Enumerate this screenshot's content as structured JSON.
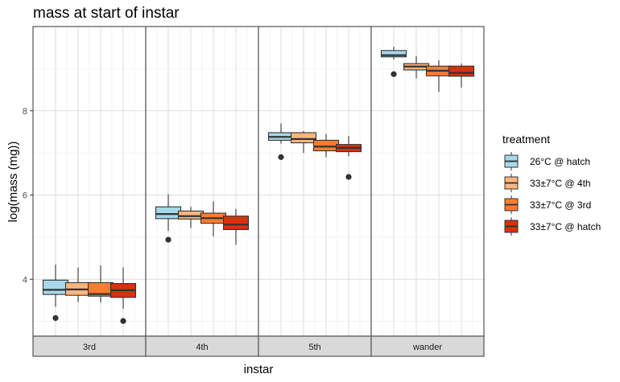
{
  "chart_data": {
    "type": "boxplot",
    "title": "mass at start of instar",
    "xlabel": "instar",
    "ylabel": "log(mass (mg))",
    "ylim": [
      2.65,
      10.0
    ],
    "y_ticks": [
      4,
      6,
      8
    ],
    "grid": true,
    "facets": [
      "3rd",
      "4th",
      "5th",
      "wander"
    ],
    "legend": {
      "title": "treatment",
      "position": "right",
      "entries": [
        {
          "label": "26°C @ hatch",
          "color": "#a6d8ea"
        },
        {
          "label": "33±7°C @ 4th",
          "color": "#fdb57e"
        },
        {
          "label": "33±7°C @ 3rd",
          "color": "#fb7c33"
        },
        {
          "label": "33±7°C @ hatch",
          "color": "#d6320d"
        }
      ]
    },
    "panels": [
      {
        "facet": "3rd",
        "boxes": [
          {
            "treatment": "26°C @ hatch",
            "min": 3.35,
            "q1": 3.64,
            "median": 3.75,
            "q3": 3.98,
            "max": 4.35,
            "outliers": [
              3.08
            ]
          },
          {
            "treatment": "33±7°C @ 4th",
            "min": 3.46,
            "q1": 3.62,
            "median": 3.76,
            "q3": 3.92,
            "max": 4.28,
            "outliers": []
          },
          {
            "treatment": "33±7°C @ 3rd",
            "min": 3.45,
            "q1": 3.6,
            "median": 3.65,
            "q3": 3.92,
            "max": 4.33,
            "outliers": []
          },
          {
            "treatment": "33±7°C @ hatch",
            "min": 3.3,
            "q1": 3.57,
            "median": 3.74,
            "q3": 3.9,
            "max": 4.28,
            "outliers": [
              3.01
            ]
          }
        ]
      },
      {
        "facet": "4th",
        "boxes": [
          {
            "treatment": "26°C @ hatch",
            "min": 5.15,
            "q1": 5.44,
            "median": 5.55,
            "q3": 5.72,
            "max": 6.02,
            "outliers": [
              4.94
            ]
          },
          {
            "treatment": "33±7°C @ 4th",
            "min": 5.22,
            "q1": 5.43,
            "median": 5.5,
            "q3": 5.62,
            "max": 5.72,
            "outliers": []
          },
          {
            "treatment": "33±7°C @ 3rd",
            "min": 5.02,
            "q1": 5.33,
            "median": 5.45,
            "q3": 5.57,
            "max": 5.85,
            "outliers": []
          },
          {
            "treatment": "33±7°C @ hatch",
            "min": 4.82,
            "q1": 5.18,
            "median": 5.3,
            "q3": 5.5,
            "max": 5.67,
            "outliers": []
          }
        ]
      },
      {
        "facet": "5th",
        "boxes": [
          {
            "treatment": "26°C @ hatch",
            "min": 7.22,
            "q1": 7.3,
            "median": 7.38,
            "q3": 7.48,
            "max": 7.7,
            "outliers": [
              6.9
            ]
          },
          {
            "treatment": "33±7°C @ 4th",
            "min": 7.0,
            "q1": 7.24,
            "median": 7.33,
            "q3": 7.48,
            "max": 7.52,
            "outliers": []
          },
          {
            "treatment": "33±7°C @ 3rd",
            "min": 6.9,
            "q1": 7.05,
            "median": 7.15,
            "q3": 7.3,
            "max": 7.45,
            "outliers": []
          },
          {
            "treatment": "33±7°C @ hatch",
            "min": 6.92,
            "q1": 7.03,
            "median": 7.12,
            "q3": 7.2,
            "max": 7.4,
            "outliers": [
              6.43
            ]
          }
        ]
      },
      {
        "facet": "wander",
        "boxes": [
          {
            "treatment": "26°C @ hatch",
            "min": 9.22,
            "q1": 9.28,
            "median": 9.32,
            "q3": 9.43,
            "max": 9.52,
            "outliers": [
              8.87
            ]
          },
          {
            "treatment": "33±7°C @ 4th",
            "min": 8.77,
            "q1": 8.97,
            "median": 9.05,
            "q3": 9.12,
            "max": 9.3,
            "outliers": []
          },
          {
            "treatment": "33±7°C @ 3rd",
            "min": 8.45,
            "q1": 8.83,
            "median": 8.95,
            "q3": 9.06,
            "max": 9.2,
            "outliers": []
          },
          {
            "treatment": "33±7°C @ hatch",
            "min": 8.55,
            "q1": 8.82,
            "median": 8.9,
            "q3": 9.06,
            "max": 9.12,
            "outliers": []
          }
        ]
      }
    ]
  }
}
